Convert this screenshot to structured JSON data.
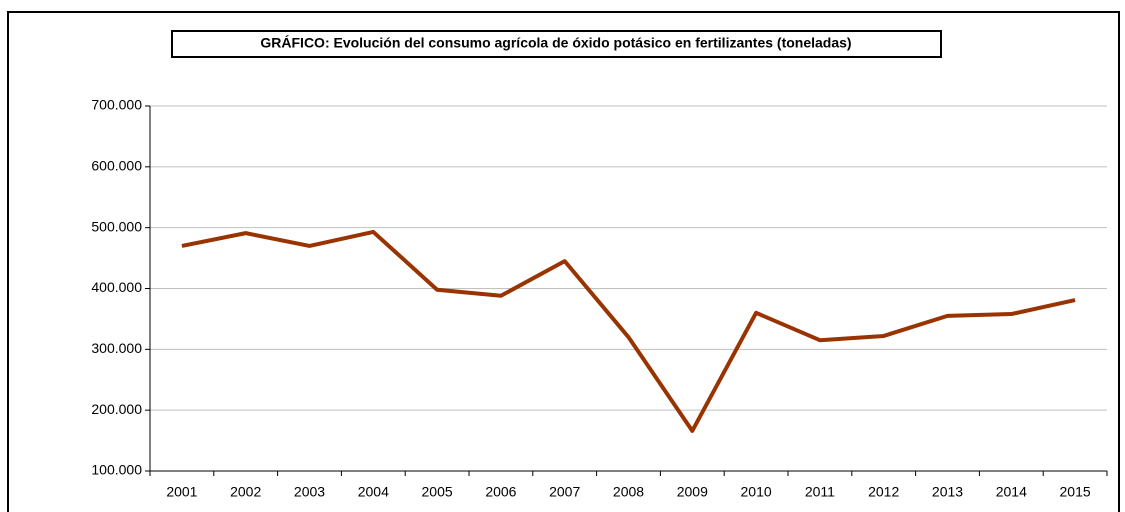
{
  "chart_data": {
    "type": "line",
    "title": "GRÁFICO: Evolución del consumo agrícola de óxido potásico en fertilizantes (toneladas)",
    "categories": [
      "2001",
      "2002",
      "2003",
      "2004",
      "2005",
      "2006",
      "2007",
      "2008",
      "2009",
      "2010",
      "2011",
      "2012",
      "2013",
      "2014",
      "2015"
    ],
    "series": [
      {
        "name": "Óxido potásico",
        "color": "#993300",
        "values": [
          470000,
          491000,
          470000,
          493000,
          398000,
          388000,
          445000,
          320000,
          166000,
          360000,
          315000,
          322000,
          355000,
          358000,
          381000
        ]
      }
    ],
    "ylim": [
      100000,
      700000
    ],
    "yticks": [
      {
        "value": 100000,
        "label": "100.000"
      },
      {
        "value": 200000,
        "label": "200.000"
      },
      {
        "value": 300000,
        "label": "300.000"
      },
      {
        "value": 400000,
        "label": "400.000"
      },
      {
        "value": 500000,
        "label": "500.000"
      },
      {
        "value": 600000,
        "label": "600.000"
      },
      {
        "value": 700000,
        "label": "700.000"
      }
    ],
    "grid": true
  }
}
